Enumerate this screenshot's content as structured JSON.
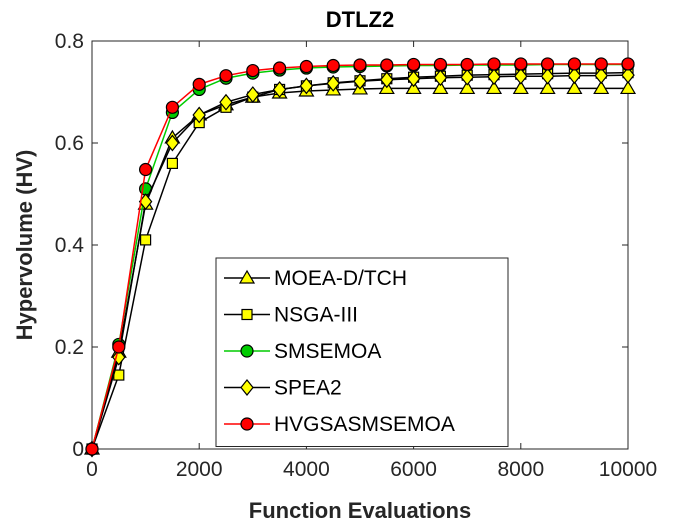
{
  "chart_data": {
    "type": "line",
    "title": "DTLZ2",
    "xlabel": "Function Evaluations",
    "ylabel": "Hypervolume (HV)",
    "xlim": [
      0,
      10000
    ],
    "ylim": [
      0,
      0.8
    ],
    "xticks": [
      0,
      2000,
      4000,
      6000,
      8000,
      10000
    ],
    "yticks": [
      0,
      0.2,
      0.4,
      0.6,
      0.8
    ],
    "xtick_labels": [
      "0",
      "2000",
      "4000",
      "6000",
      "8000",
      "10000"
    ],
    "ytick_labels": [
      "0",
      "0.2",
      "0.4",
      "0.6",
      "0.8"
    ],
    "grid": false,
    "legend_position": "lower-right",
    "x": [
      0,
      500,
      1000,
      1500,
      2000,
      2500,
      3000,
      3500,
      4000,
      4500,
      5000,
      5500,
      6000,
      6500,
      7000,
      7500,
      8000,
      8500,
      9000,
      9500,
      10000
    ],
    "series": [
      {
        "name": "MOEA-D/TCH",
        "line_color": "#000000",
        "marker": "triangle",
        "marker_fill": "#ffff00",
        "values": [
          0.0,
          0.19,
          0.48,
          0.61,
          0.655,
          0.675,
          0.69,
          0.698,
          0.702,
          0.704,
          0.706,
          0.707,
          0.707,
          0.707,
          0.707,
          0.707,
          0.707,
          0.707,
          0.707,
          0.707,
          0.707
        ]
      },
      {
        "name": "NSGA-III",
        "line_color": "#000000",
        "marker": "square",
        "marker_fill": "#ffff00",
        "values": [
          0.0,
          0.145,
          0.41,
          0.56,
          0.64,
          0.67,
          0.69,
          0.705,
          0.712,
          0.718,
          0.722,
          0.726,
          0.729,
          0.731,
          0.733,
          0.734,
          0.735,
          0.736,
          0.737,
          0.737,
          0.738
        ]
      },
      {
        "name": "SMSEMOA",
        "line_color": "#00cc00",
        "marker": "circle",
        "marker_fill": "#00cc00",
        "values": [
          0.0,
          0.205,
          0.51,
          0.66,
          0.705,
          0.727,
          0.737,
          0.743,
          0.747,
          0.749,
          0.75,
          0.751,
          0.752,
          0.752,
          0.753,
          0.753,
          0.753,
          0.754,
          0.754,
          0.754,
          0.754
        ]
      },
      {
        "name": "SPEA2",
        "line_color": "#000000",
        "marker": "diamond",
        "marker_fill": "#ffff00",
        "values": [
          0.0,
          0.18,
          0.485,
          0.6,
          0.655,
          0.68,
          0.695,
          0.705,
          0.712,
          0.717,
          0.721,
          0.724,
          0.726,
          0.728,
          0.729,
          0.73,
          0.731,
          0.731,
          0.732,
          0.732,
          0.733
        ]
      },
      {
        "name": "HVGSASMSEMOA",
        "line_color": "#ff0000",
        "marker": "circle",
        "marker_fill": "#ff0000",
        "values": [
          0.0,
          0.2,
          0.548,
          0.67,
          0.715,
          0.732,
          0.742,
          0.747,
          0.75,
          0.752,
          0.753,
          0.753,
          0.754,
          0.754,
          0.754,
          0.755,
          0.755,
          0.755,
          0.755,
          0.755,
          0.755
        ]
      }
    ]
  }
}
